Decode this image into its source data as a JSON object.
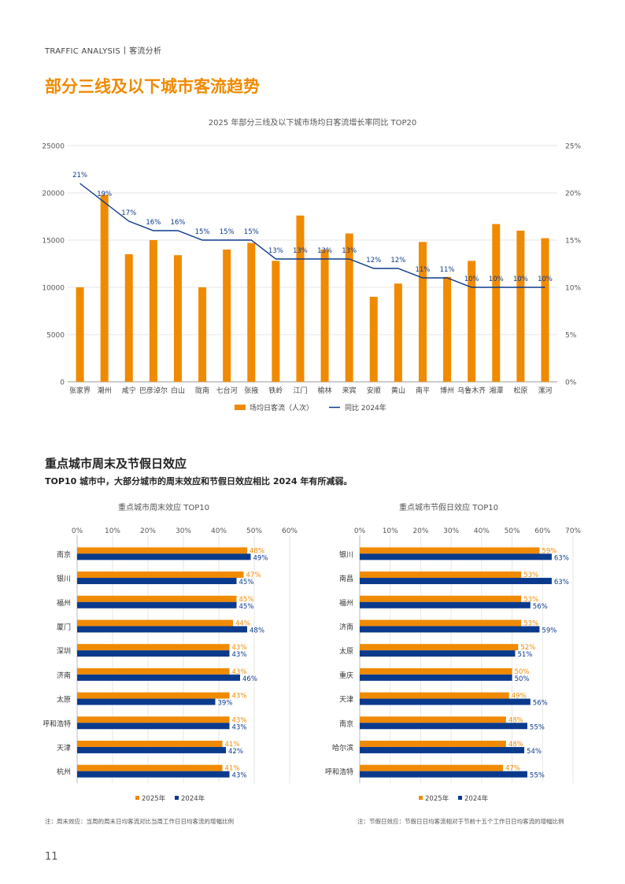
{
  "header": {
    "label": "TRAFFIC ANALYSIS",
    "section": "客流分析"
  },
  "page_title": "部分三线及以下城市客流趋势",
  "section": {
    "title": "重点城市周末及节假日效应",
    "subtitle": "TOP10 城市中，大部分城市的周末效应和节假日效应相比 2024 年有所减弱。"
  },
  "colors": {
    "orange": "#f08a00",
    "blue": "#0a3a8c",
    "accent": "#f08a00"
  },
  "chart_data": [
    {
      "type": "bar",
      "title": "2025 年部分三线及以下城市场均日客流增长率同比 TOP20",
      "categories": [
        "张家界",
        "潮州",
        "咸宁",
        "巴彦淖尔",
        "白山",
        "陇南",
        "七台河",
        "张掖",
        "铁岭",
        "江门",
        "榆林",
        "来宾",
        "安顺",
        "黄山",
        "南平",
        "博州",
        "乌鲁木齐",
        "湘潭",
        "松原",
        "漯河"
      ],
      "series": [
        {
          "name": "场均日客流（人次）",
          "type": "bar",
          "values": [
            10000,
            19800,
            13500,
            15000,
            13400,
            10000,
            14000,
            14700,
            12800,
            17600,
            14000,
            15700,
            9000,
            10400,
            14800,
            11100,
            12800,
            16700,
            16000,
            15200
          ]
        },
        {
          "name": "同比 2024年",
          "type": "line",
          "values": [
            21,
            19,
            17,
            16,
            16,
            15,
            15,
            15,
            13,
            13,
            13,
            13,
            12,
            12,
            11,
            11,
            10,
            10,
            10,
            10
          ],
          "labels": [
            "21%",
            "19%",
            "17%",
            "16%",
            "16%",
            "15%",
            "15%",
            "15%",
            "13%",
            "13%",
            "13%",
            "13%",
            "12%",
            "12%",
            "11%",
            "11%",
            "10%",
            "10%",
            "10%",
            "10%"
          ]
        }
      ],
      "y_left": {
        "min": 0,
        "max": 25000,
        "ticks": [
          "0",
          "5000",
          "10000",
          "15000",
          "20000",
          "25000"
        ]
      },
      "y_right": {
        "min": 0,
        "max": 25,
        "ticks": [
          "0%",
          "5%",
          "10%",
          "15%",
          "20%",
          "25%"
        ]
      },
      "legend": [
        "场均日客流（人次）",
        "同比 2024年"
      ],
      "legend_position": "bottom"
    },
    {
      "type": "bar",
      "orientation": "horizontal",
      "title": "重点城市周末效应 TOP10",
      "categories": [
        "南京",
        "银川",
        "福州",
        "厦门",
        "深圳",
        "济南",
        "太原",
        "呼和浩特",
        "天津",
        "杭州"
      ],
      "series": [
        {
          "name": "2025年",
          "values": [
            48,
            47,
            45,
            44,
            43,
            43,
            43,
            43,
            41,
            41
          ],
          "labels": [
            "48%",
            "47%",
            "45%",
            "44%",
            "43%",
            "43%",
            "43%",
            "43%",
            "41%",
            "41%"
          ]
        },
        {
          "name": "2024年",
          "values": [
            49,
            45,
            45,
            48,
            43,
            46,
            39,
            43,
            42,
            43
          ],
          "labels": [
            "49%",
            "45%",
            "45%",
            "48%",
            "43%",
            "46%",
            "39%",
            "43%",
            "42%",
            "43%"
          ]
        }
      ],
      "x_axis": {
        "min": 0,
        "max": 60,
        "ticks": [
          "0%",
          "10%",
          "20%",
          "30%",
          "40%",
          "50%",
          "60%"
        ]
      },
      "legend": [
        "2025年",
        "2024年"
      ],
      "legend_position": "bottom",
      "note": "注：周末效应：当周的周末日均客流对比当周工作日日均客流的增幅比例"
    },
    {
      "type": "bar",
      "orientation": "horizontal",
      "title": "重点城市节假日效应 TOP10",
      "categories": [
        "银川",
        "南昌",
        "福州",
        "济南",
        "太原",
        "重庆",
        "天津",
        "南京",
        "哈尔滨",
        "呼和浩特"
      ],
      "series": [
        {
          "name": "2025年",
          "values": [
            59,
            53,
            53,
            53,
            52,
            50,
            49,
            48,
            48,
            47
          ],
          "labels": [
            "59%",
            "53%",
            "53%",
            "53%",
            "52%",
            "50%",
            "49%",
            "48%",
            "48%",
            "47%"
          ]
        },
        {
          "name": "2024年",
          "values": [
            63,
            63,
            56,
            59,
            51,
            50,
            56,
            55,
            54,
            55
          ],
          "labels": [
            "63%",
            "63%",
            "56%",
            "59%",
            "51%",
            "50%",
            "56%",
            "55%",
            "54%",
            "55%"
          ]
        }
      ],
      "x_axis": {
        "min": 0,
        "max": 70,
        "ticks": [
          "0%",
          "10%",
          "20%",
          "30%",
          "40%",
          "50%",
          "60%",
          "70%"
        ]
      },
      "legend": [
        "2025年",
        "2024年"
      ],
      "legend_position": "bottom",
      "note": "注：节假日效应：节假日日均客流相对于节前十五个工作日日均客流的增幅比例"
    }
  ],
  "page_number": "11"
}
